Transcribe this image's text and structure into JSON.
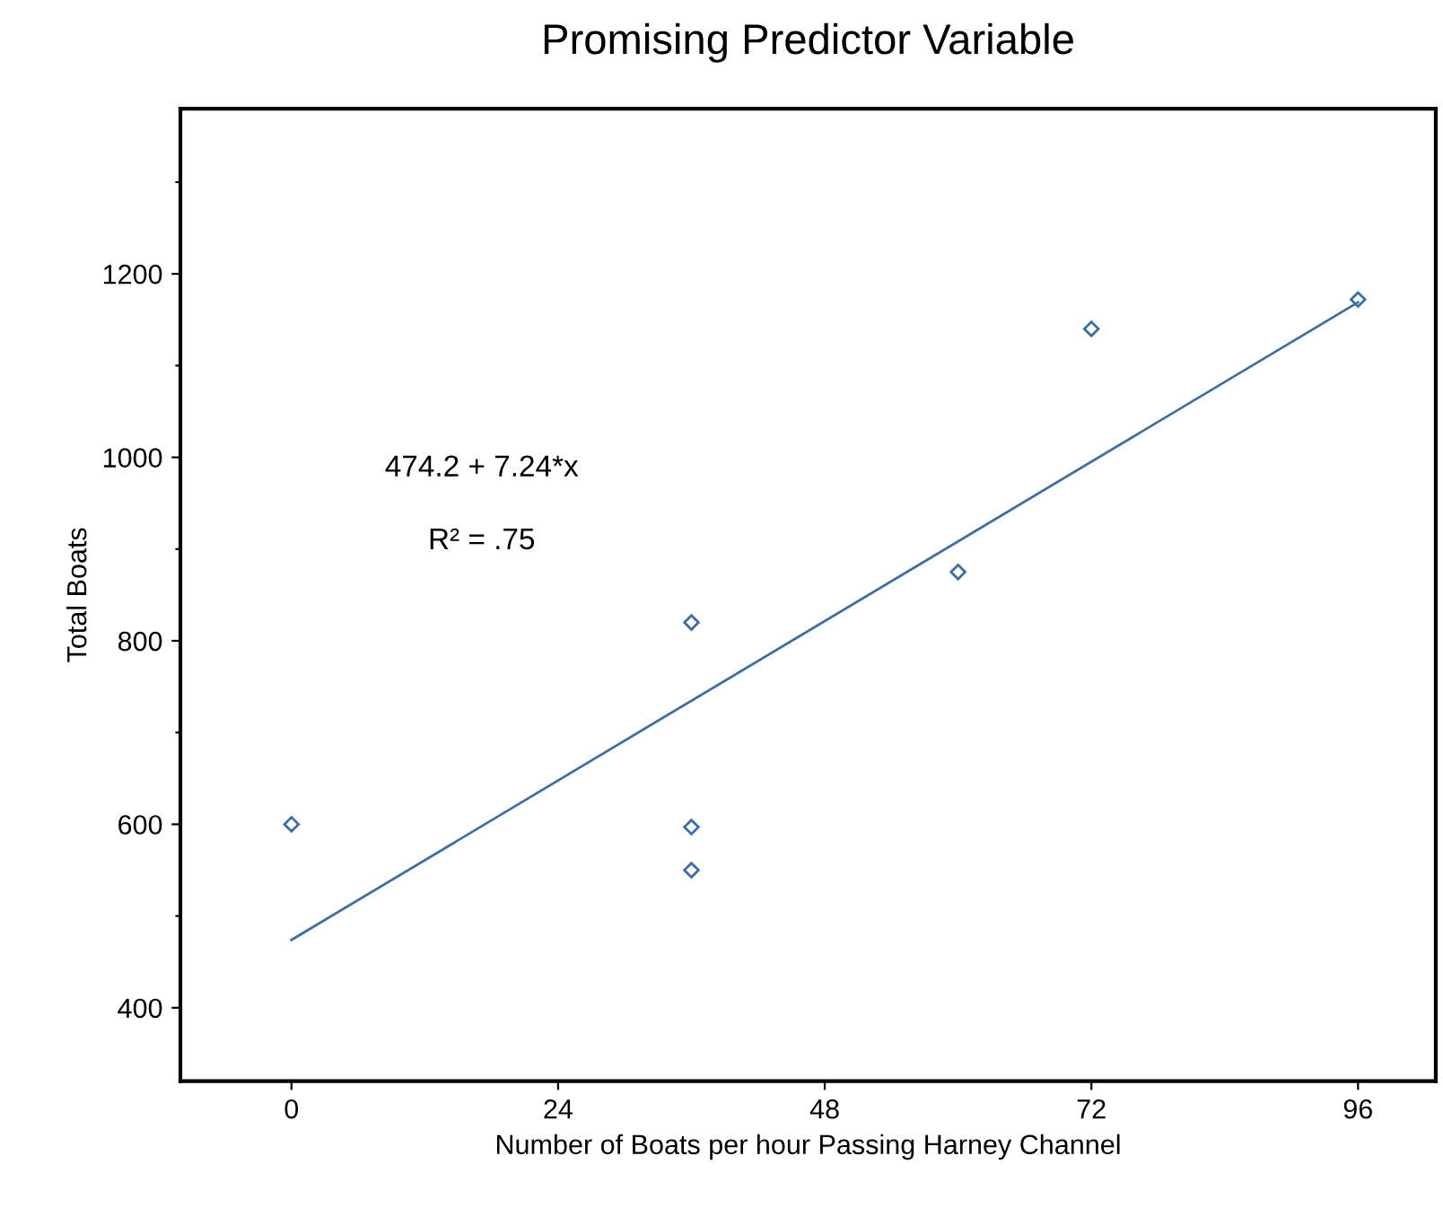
{
  "chart_data": {
    "type": "scatter",
    "title": "Promising Predictor Variable",
    "xlabel": "Number of Boats per hour Passing Harney Channel",
    "ylabel": "Total Boats",
    "xlim": [
      -10,
      103
    ],
    "xticks": [
      0,
      24,
      48,
      72,
      96
    ],
    "ylim": [
      320,
      1380
    ],
    "yticks": [
      400,
      {
        "value": 500,
        "label": null
      },
      600,
      {
        "value": 700,
        "label": null
      },
      800,
      {
        "value": 900,
        "label": null
      },
      1000,
      {
        "value": 1100,
        "label": null
      },
      1200,
      {
        "value": 1300,
        "label": null
      }
    ],
    "grid": false,
    "legend": false,
    "series": [
      {
        "color": "#3a6ea5",
        "marker": "diamond",
        "x": [
          0,
          36,
          36,
          36,
          60,
          72,
          96
        ],
        "values": [
          600,
          820,
          597,
          550,
          875,
          1140,
          1172
        ]
      },
      {
        "type": "line",
        "color": "#3a6ea5",
        "x": [
          0,
          96
        ],
        "values": [
          474,
          1169
        ]
      }
    ],
    "annotations": [
      "474.2 + 7.24*x",
      "R² = .75"
    ]
  }
}
